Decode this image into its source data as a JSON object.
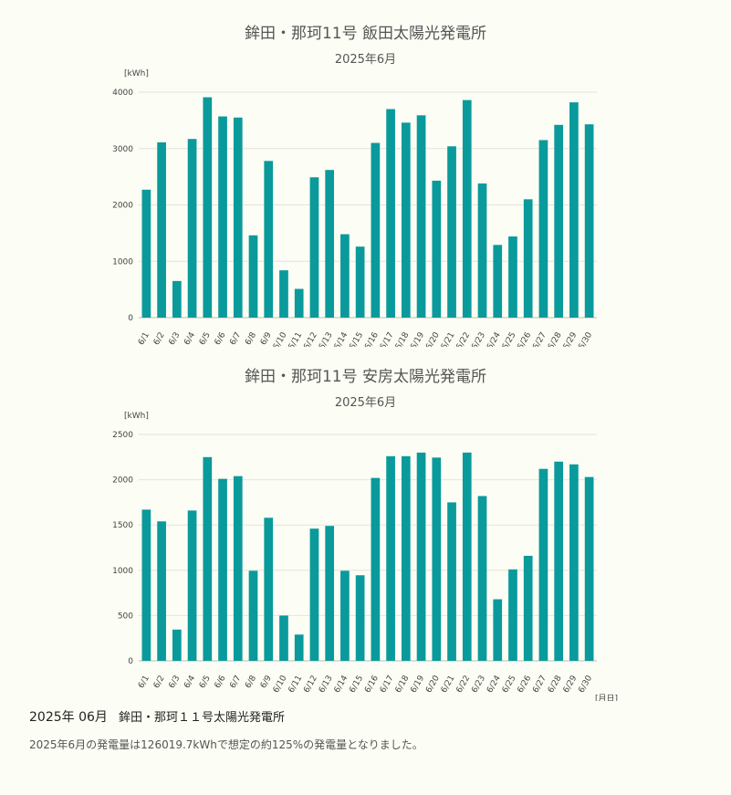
{
  "chart_data": [
    {
      "type": "bar",
      "title": "鉾田・那珂11号 飯田太陽光発電所",
      "subtitle": "2025年6月",
      "ylabel": "[kWh]",
      "xlabel": "",
      "ylim": [
        0,
        4000
      ],
      "yticks": [
        0,
        1000,
        2000,
        3000,
        4000
      ],
      "grid": true,
      "color": "#0a9a9c",
      "categories": [
        "6/1",
        "6/2",
        "6/3",
        "6/4",
        "6/5",
        "6/6",
        "6/7",
        "6/8",
        "6/9",
        "6/10",
        "6/11",
        "6/12",
        "6/13",
        "6/14",
        "6/15",
        "6/16",
        "6/17",
        "6/18",
        "6/19",
        "6/20",
        "6/21",
        "6/22",
        "6/23",
        "6/24",
        "6/25",
        "6/26",
        "6/27",
        "6/28",
        "6/29",
        "6/30"
      ],
      "values": [
        2270,
        3110,
        650,
        3170,
        3910,
        3570,
        3550,
        1460,
        2780,
        840,
        510,
        2490,
        2620,
        1480,
        1260,
        3100,
        3700,
        3460,
        3590,
        2430,
        3040,
        3860,
        2380,
        1290,
        1440,
        2100,
        3150,
        3420,
        3820,
        3430
      ]
    },
    {
      "type": "bar",
      "title": "鉾田・那珂11号 安房太陽光発電所",
      "subtitle": "2025年6月",
      "ylabel": "[kWh]",
      "xlabel": "[月日]",
      "ylim": [
        0,
        2500
      ],
      "yticks": [
        0,
        500,
        1000,
        1500,
        2000,
        2500
      ],
      "grid": true,
      "color": "#0a9a9c",
      "categories": [
        "6/1",
        "6/2",
        "6/3",
        "6/4",
        "6/5",
        "6/6",
        "6/7",
        "6/8",
        "6/9",
        "6/10",
        "6/11",
        "6/12",
        "6/13",
        "6/14",
        "6/15",
        "6/16",
        "6/17",
        "6/18",
        "6/19",
        "6/20",
        "6/21",
        "6/22",
        "6/23",
        "6/24",
        "6/25",
        "6/26",
        "6/27",
        "6/28",
        "6/29",
        "6/30"
      ],
      "values": [
        1670,
        1540,
        345,
        1660,
        2250,
        2010,
        2040,
        995,
        1580,
        500,
        290,
        1460,
        1490,
        995,
        945,
        2020,
        2260,
        2260,
        2300,
        2245,
        1750,
        2300,
        1820,
        680,
        1010,
        1160,
        2120,
        2200,
        2170,
        2030
      ]
    }
  ],
  "summary": {
    "date": "2025年 06月",
    "name": "鉾田・那珂１１号太陽光発電所",
    "text": "2025年6月の発電量は126019.7kWhで想定の約125%の発電量となりました。"
  }
}
